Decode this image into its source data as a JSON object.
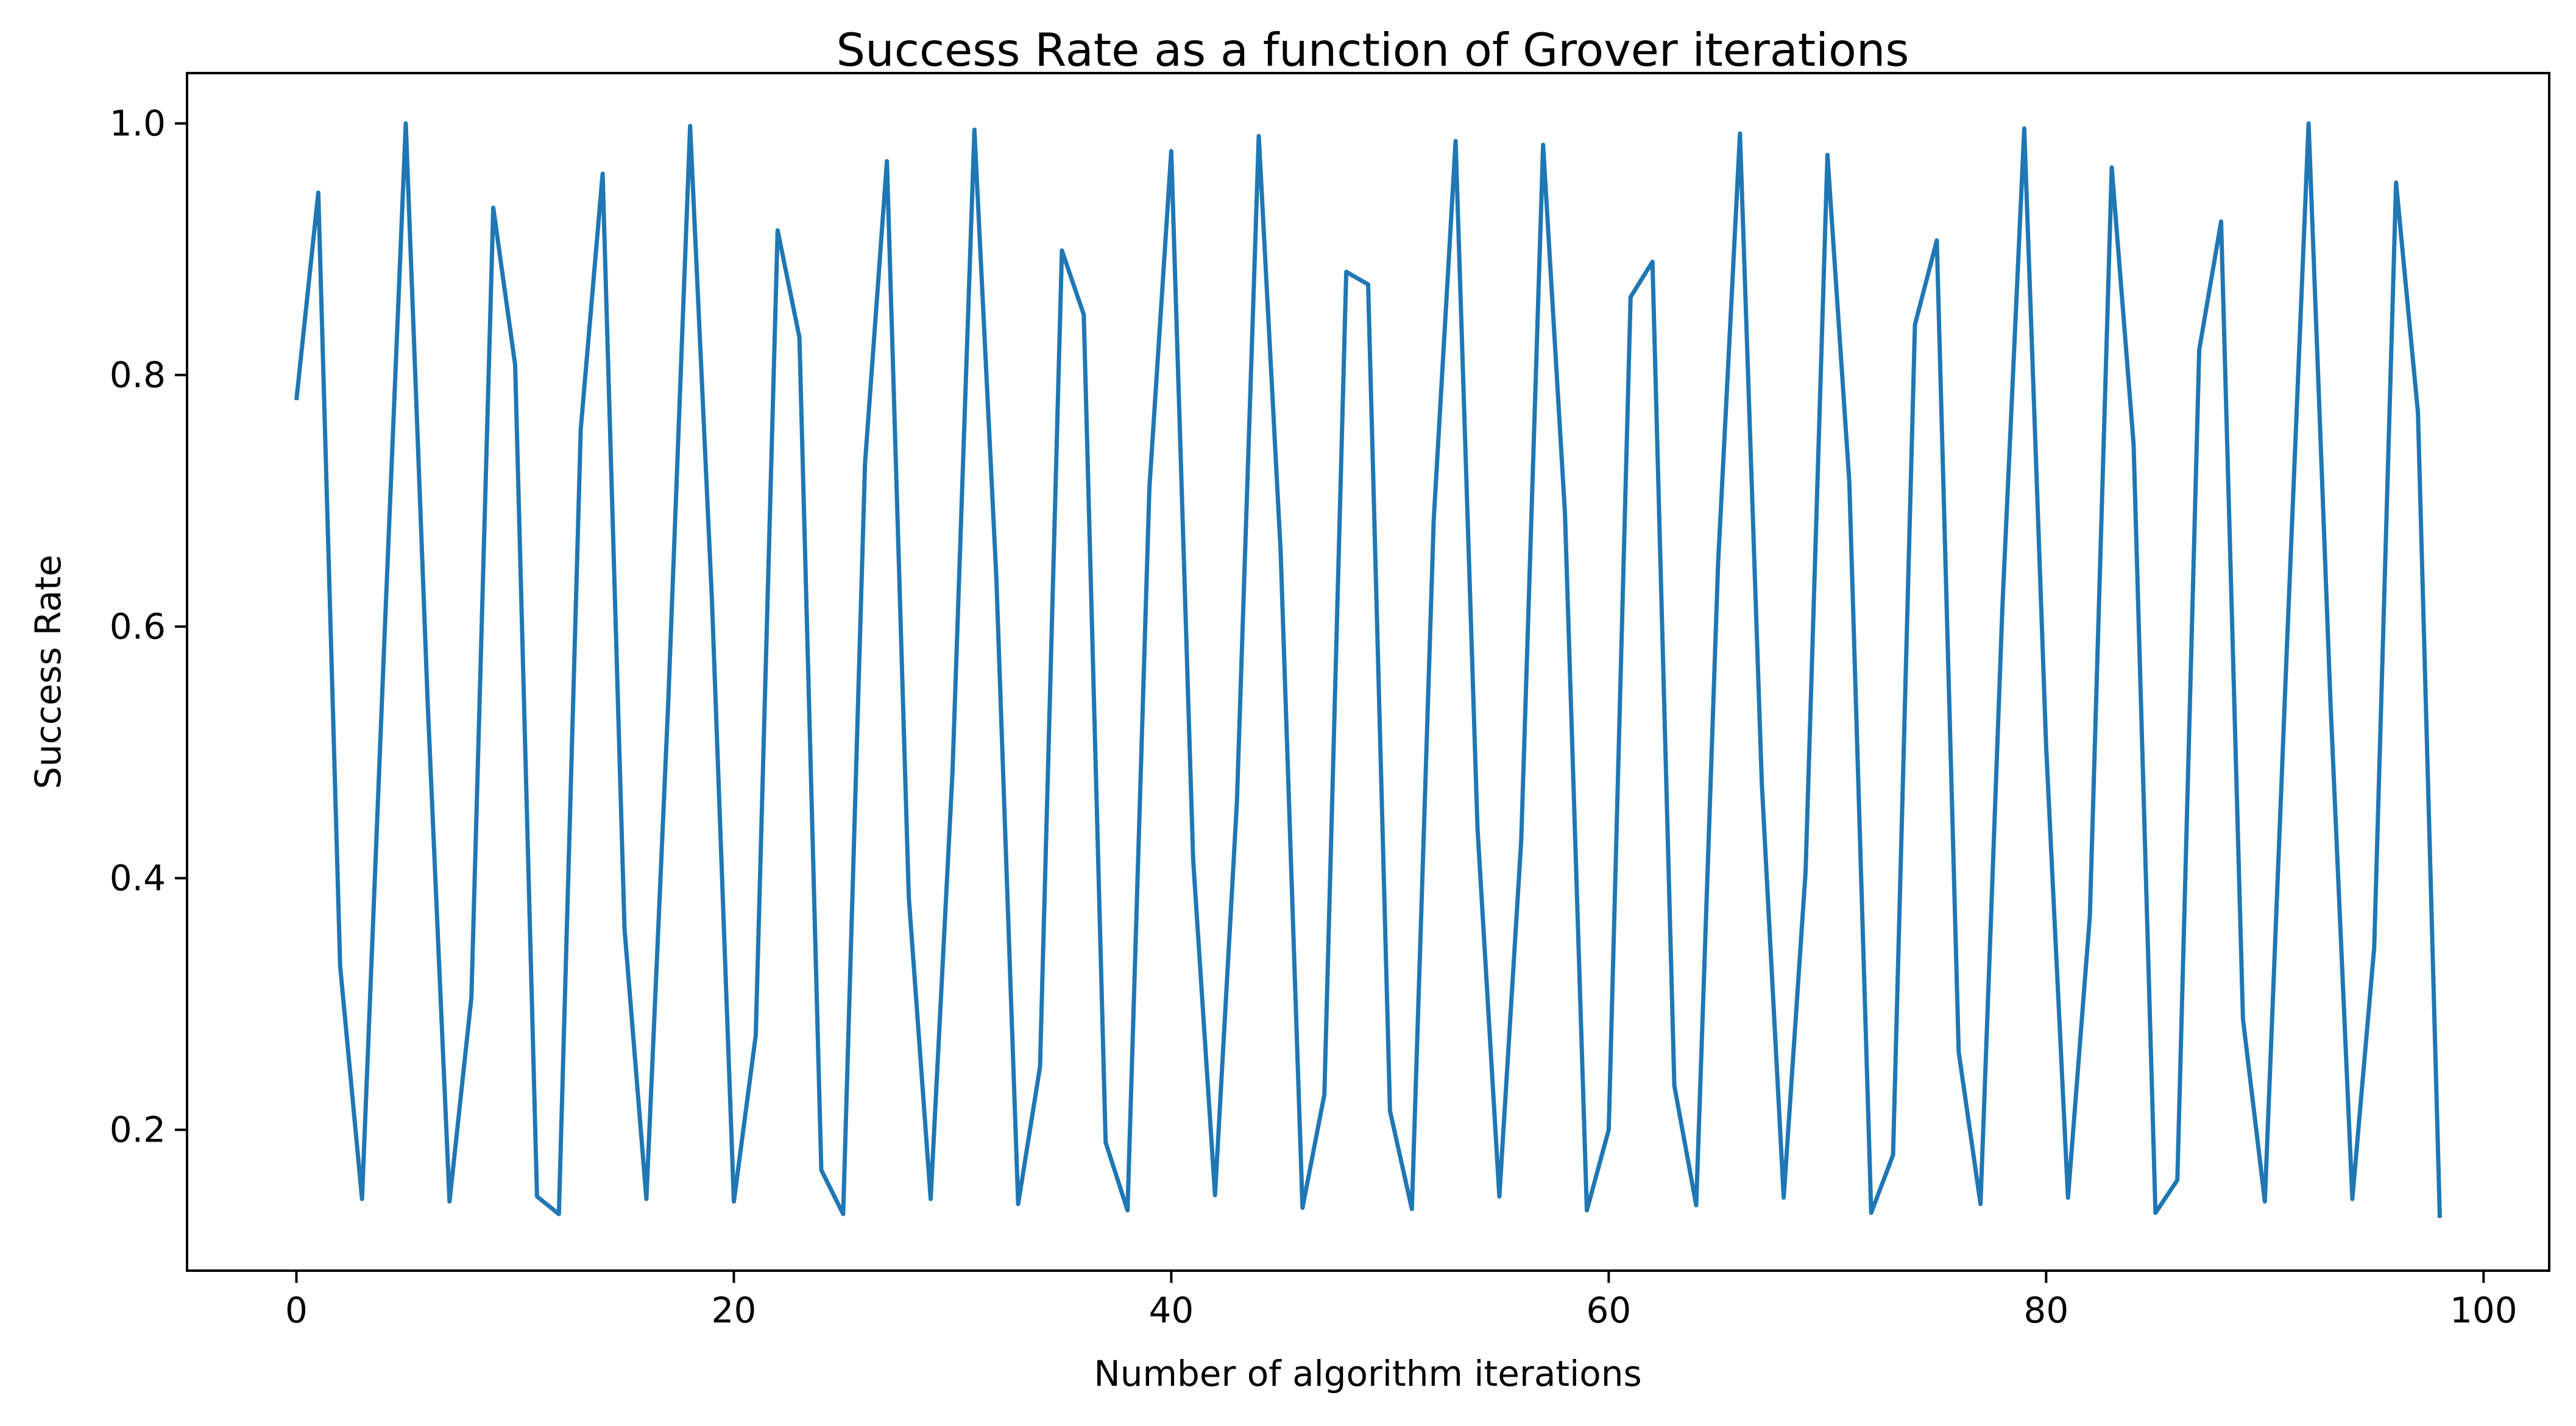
{
  "chart_data": {
    "type": "line",
    "title": "Success Rate as a function of Grover iterations",
    "xlabel": "Number of algorithm iterations",
    "ylabel": "Success Rate",
    "xlim": [
      -5,
      103
    ],
    "ylim": [
      0.088,
      1.04
    ],
    "xticks": [
      0,
      20,
      40,
      60,
      80,
      100
    ],
    "yticks": [
      0.2,
      0.4,
      0.6,
      0.8,
      1.0
    ],
    "xtick_labels": [
      "0",
      "20",
      "40",
      "60",
      "80",
      "100"
    ],
    "ytick_labels": [
      "0.2",
      "0.4",
      "0.6",
      "0.8",
      "1.0"
    ],
    "grid": false,
    "line_color": "#1f77b4",
    "series": [
      {
        "x": [
          0,
          1,
          2,
          3,
          4,
          5,
          6,
          7,
          8,
          9,
          10,
          11,
          12,
          13,
          14,
          15,
          16,
          17,
          18,
          19,
          20,
          21,
          22,
          23,
          24,
          25,
          26,
          27,
          28,
          29,
          30,
          31,
          32,
          33,
          34,
          35,
          36,
          37,
          38,
          39,
          40,
          41,
          42,
          43,
          44,
          45,
          46,
          47,
          48,
          49,
          50,
          51,
          52,
          53,
          54,
          55,
          56,
          57,
          58,
          59,
          60,
          61,
          62,
          63,
          64,
          65,
          66,
          67,
          68,
          69,
          70,
          71,
          72,
          73,
          74,
          75,
          76,
          77,
          78,
          79,
          80,
          81,
          82,
          83,
          84,
          85,
          86,
          87,
          88,
          89,
          90,
          91,
          92,
          93,
          94,
          95,
          96,
          97,
          98
        ],
        "values": [
          0.78,
          0.945,
          0.33,
          0.145,
          0.58,
          1.0,
          0.54,
          0.143,
          0.305,
          0.933,
          0.808,
          0.147,
          0.133,
          0.757,
          0.96,
          0.36,
          0.145,
          0.54,
          0.998,
          0.62,
          0.143,
          0.275,
          0.915,
          0.83,
          0.168,
          0.133,
          0.73,
          0.97,
          0.385,
          0.145,
          0.485,
          0.995,
          0.64,
          0.141,
          0.25,
          0.899,
          0.848,
          0.19,
          0.136,
          0.71,
          0.978,
          0.415,
          0.148,
          0.46,
          0.99,
          0.66,
          0.138,
          0.228,
          0.882,
          0.872,
          0.215,
          0.137,
          0.685,
          0.986,
          0.44,
          0.147,
          0.43,
          0.983,
          0.69,
          0.136,
          0.2,
          0.862,
          0.89,
          0.235,
          0.14,
          0.65,
          0.992,
          0.475,
          0.146,
          0.405,
          0.975,
          0.715,
          0.134,
          0.18,
          0.84,
          0.907,
          0.262,
          0.141,
          0.615,
          0.996,
          0.505,
          0.146,
          0.37,
          0.965,
          0.745,
          0.134,
          0.16,
          0.82,
          0.922,
          0.288,
          0.143,
          0.58,
          1.0,
          0.54,
          0.145,
          0.345,
          0.953,
          0.77,
          0.13
        ]
      }
    ]
  }
}
